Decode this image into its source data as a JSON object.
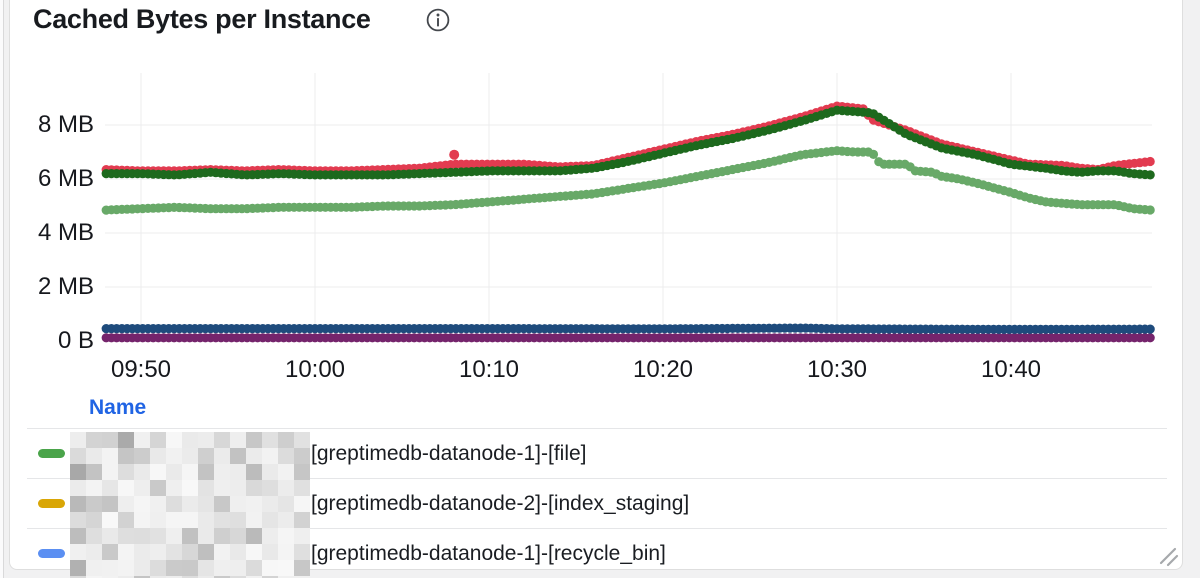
{
  "panel": {
    "title": "Cached Bytes per Instance"
  },
  "legend": {
    "header": "Name",
    "header_color": "#2064e4",
    "rows": [
      {
        "marker_color": "#4aa44a",
        "label": "[greptimedb-datanode-1]-[file]"
      },
      {
        "marker_color": "#d9a606",
        "label": "[greptimedb-datanode-2]-[index_staging]"
      },
      {
        "marker_color": "#5b8ff2",
        "label": "[greptimedb-datanode-1]-[recycle_bin]"
      }
    ]
  },
  "chart_data": {
    "type": "scatter",
    "draw_style": "points",
    "title": "Cached Bytes per Instance",
    "xlabel": "",
    "ylabel": "",
    "y_unit": "MB",
    "ylim": [
      0,
      9.6
    ],
    "x_range_minutes_from_0950": [
      -2,
      58
    ],
    "grid": true,
    "legend_position": "bottom-table",
    "y_ticks": [
      {
        "label": "8 MB",
        "value": 8
      },
      {
        "label": "6 MB",
        "value": 6
      },
      {
        "label": "4 MB",
        "value": 4
      },
      {
        "label": "2 MB",
        "value": 2
      },
      {
        "label": "0 B",
        "value": 0
      }
    ],
    "x_ticks": [
      {
        "label": "09:50",
        "minute": 0
      },
      {
        "label": "10:00",
        "minute": 10
      },
      {
        "label": "10:10",
        "minute": 20
      },
      {
        "label": "10:20",
        "minute": 30
      },
      {
        "label": "10:30",
        "minute": 40
      },
      {
        "label": "10:40",
        "minute": 50
      }
    ],
    "series": [
      {
        "id": "cached-purple",
        "color": "#75246c",
        "points": [
          [
            -2,
            0.12
          ],
          [
            58,
            0.12
          ]
        ]
      },
      {
        "id": "cached-navy",
        "color": "#1e4b7c",
        "points": [
          [
            -2,
            0.46
          ],
          [
            20,
            0.46
          ],
          [
            30,
            0.45
          ],
          [
            38,
            0.48
          ],
          [
            40,
            0.45
          ],
          [
            50,
            0.43
          ],
          [
            58,
            0.44
          ]
        ]
      },
      {
        "id": "cached-light-green",
        "color": "#68a968",
        "points": [
          [
            -2,
            4.85
          ],
          [
            0,
            4.9
          ],
          [
            2,
            4.95
          ],
          [
            4,
            4.9
          ],
          [
            6,
            4.9
          ],
          [
            8,
            4.95
          ],
          [
            10,
            4.95
          ],
          [
            12,
            4.95
          ],
          [
            14,
            5.0
          ],
          [
            16,
            5.0
          ],
          [
            18,
            5.05
          ],
          [
            20,
            5.15
          ],
          [
            22,
            5.25
          ],
          [
            24,
            5.35
          ],
          [
            26,
            5.45
          ],
          [
            28,
            5.65
          ],
          [
            30,
            5.85
          ],
          [
            32,
            6.1
          ],
          [
            34,
            6.35
          ],
          [
            36,
            6.6
          ],
          [
            38,
            6.9
          ],
          [
            40,
            7.05
          ],
          [
            41,
            7.0
          ],
          [
            42,
            7.0
          ],
          [
            42.5,
            6.55
          ],
          [
            44,
            6.55
          ],
          [
            44.5,
            6.3
          ],
          [
            45.5,
            6.25
          ],
          [
            46,
            6.1
          ],
          [
            47,
            6.0
          ],
          [
            48,
            5.85
          ],
          [
            50,
            5.5
          ],
          [
            51,
            5.3
          ],
          [
            52,
            5.15
          ],
          [
            54,
            5.05
          ],
          [
            56,
            5.05
          ],
          [
            57,
            4.9
          ],
          [
            58,
            4.85
          ]
        ]
      },
      {
        "id": "cached-red",
        "color": "#e23b50",
        "points": [
          [
            -2,
            6.35
          ],
          [
            0,
            6.3
          ],
          [
            2,
            6.3
          ],
          [
            4,
            6.35
          ],
          [
            6,
            6.3
          ],
          [
            8,
            6.35
          ],
          [
            10,
            6.3
          ],
          [
            12,
            6.3
          ],
          [
            14,
            6.35
          ],
          [
            16,
            6.4
          ],
          [
            18,
            6.55
          ],
          [
            20,
            6.55
          ],
          [
            22,
            6.55
          ],
          [
            24,
            6.45
          ],
          [
            26,
            6.5
          ],
          [
            28,
            6.8
          ],
          [
            30,
            7.1
          ],
          [
            32,
            7.4
          ],
          [
            34,
            7.65
          ],
          [
            36,
            7.95
          ],
          [
            38,
            8.3
          ],
          [
            40,
            8.7
          ],
          [
            41.5,
            8.6
          ],
          [
            42,
            8.2
          ],
          [
            43,
            8.0
          ],
          [
            44,
            7.8
          ],
          [
            46,
            7.3
          ],
          [
            48,
            7.0
          ],
          [
            50,
            6.7
          ],
          [
            51,
            6.55
          ],
          [
            53,
            6.5
          ],
          [
            54,
            6.4
          ],
          [
            55,
            6.35
          ],
          [
            56,
            6.5
          ],
          [
            58,
            6.65
          ]
        ]
      },
      {
        "id": "cached-dark-green",
        "color": "#1d691d",
        "points": [
          [
            -2,
            6.2
          ],
          [
            0,
            6.2
          ],
          [
            2,
            6.15
          ],
          [
            4,
            6.25
          ],
          [
            6,
            6.15
          ],
          [
            8,
            6.2
          ],
          [
            10,
            6.15
          ],
          [
            12,
            6.15
          ],
          [
            14,
            6.15
          ],
          [
            16,
            6.2
          ],
          [
            18,
            6.25
          ],
          [
            20,
            6.3
          ],
          [
            22,
            6.3
          ],
          [
            24,
            6.3
          ],
          [
            26,
            6.4
          ],
          [
            28,
            6.65
          ],
          [
            30,
            6.95
          ],
          [
            32,
            7.25
          ],
          [
            34,
            7.5
          ],
          [
            36,
            7.8
          ],
          [
            38,
            8.15
          ],
          [
            40,
            8.55
          ],
          [
            42,
            8.45
          ],
          [
            43,
            8.05
          ],
          [
            44,
            7.65
          ],
          [
            46,
            7.15
          ],
          [
            48,
            6.9
          ],
          [
            50,
            6.55
          ],
          [
            52,
            6.4
          ],
          [
            53,
            6.3
          ],
          [
            54,
            6.25
          ],
          [
            55,
            6.3
          ],
          [
            56,
            6.3
          ],
          [
            57,
            6.2
          ],
          [
            58,
            6.15
          ]
        ]
      }
    ],
    "outlier": {
      "series": "cached-red",
      "minute": 18,
      "value": 6.9,
      "radius": 5
    }
  }
}
